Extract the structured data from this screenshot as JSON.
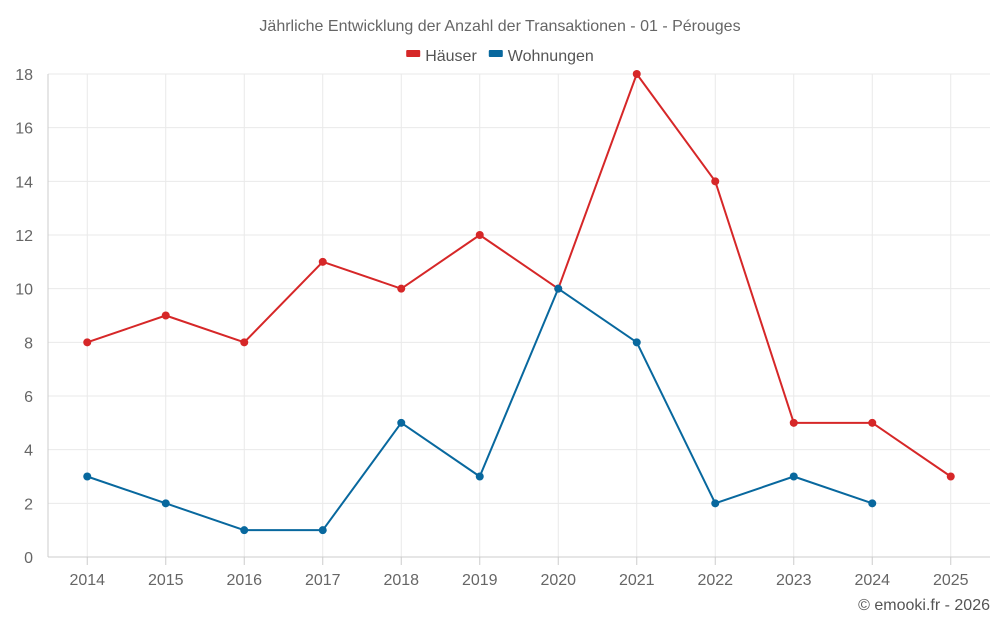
{
  "chart_data": {
    "type": "line",
    "title": "Jährliche Entwicklung der Anzahl der Transaktionen - 01 - Pérouges",
    "categories": [
      "2014",
      "2015",
      "2016",
      "2017",
      "2018",
      "2019",
      "2020",
      "2021",
      "2022",
      "2023",
      "2024",
      "2025"
    ],
    "series": [
      {
        "name": "Häuser",
        "color": "#d62728",
        "values": [
          8,
          9,
          8,
          11,
          10,
          12,
          10,
          18,
          14,
          5,
          5,
          3
        ]
      },
      {
        "name": "Wohnungen",
        "color": "#08689e",
        "values": [
          3,
          2,
          1,
          1,
          5,
          3,
          10,
          8,
          2,
          3,
          2,
          null
        ]
      }
    ],
    "ylim": [
      0,
      18
    ],
    "yticks": [
      0,
      2,
      4,
      6,
      8,
      10,
      12,
      14,
      16,
      18
    ],
    "grid": true,
    "legend": "top-center",
    "xlabel": "",
    "ylabel": ""
  },
  "credit": "© emooki.fr - 2026"
}
